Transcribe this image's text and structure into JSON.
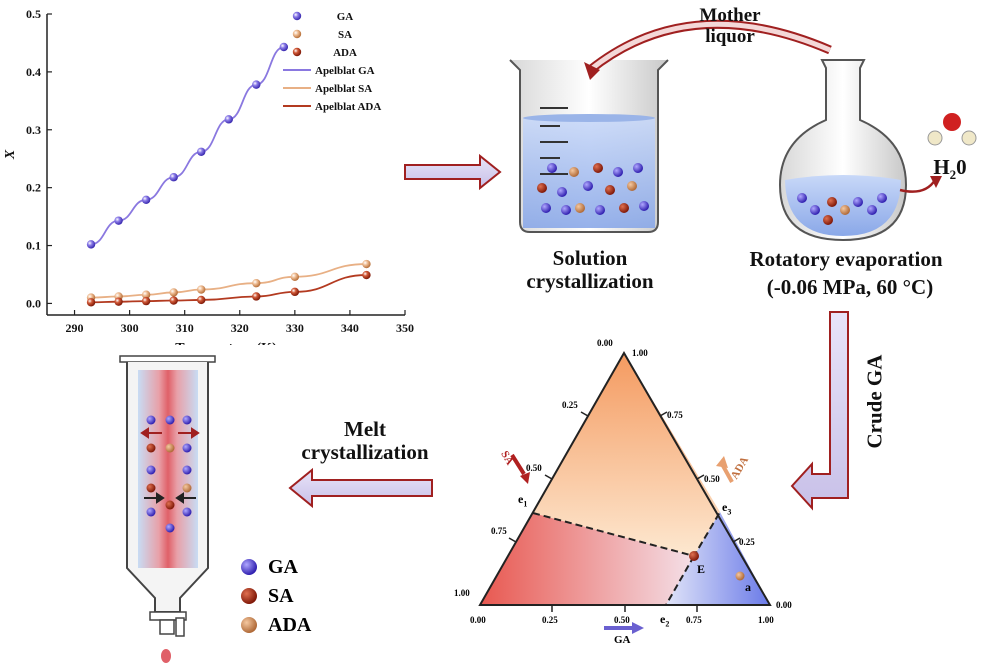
{
  "chart_data": {
    "type": "line",
    "title": "",
    "xlabel": "Temperature (K)",
    "ylabel": "X",
    "xlim": [
      285,
      350
    ],
    "ylim": [
      -0.02,
      0.5
    ],
    "xticks": [
      "290",
      "300",
      "310",
      "320",
      "330",
      "340",
      "350"
    ],
    "yticks": [
      "0.0",
      "0.1",
      "0.2",
      "0.3",
      "0.4",
      "0.5"
    ],
    "legend_position": "top-right",
    "series": [
      {
        "name": "GA",
        "kind": "scatter",
        "color": "#6a5bd6",
        "x": [
          293,
          298,
          303,
          308,
          313,
          318,
          323,
          328
        ],
        "y": [
          0.102,
          0.143,
          0.179,
          0.218,
          0.262,
          0.318,
          0.378,
          0.443
        ]
      },
      {
        "name": "SA",
        "kind": "scatter",
        "color": "#e0a070",
        "x": [
          293,
          298,
          303,
          308,
          313,
          323,
          330,
          343
        ],
        "y": [
          0.01,
          0.012,
          0.015,
          0.019,
          0.024,
          0.035,
          0.046,
          0.068
        ]
      },
      {
        "name": "ADA",
        "kind": "scatter",
        "color": "#b33a20",
        "x": [
          293,
          298,
          303,
          308,
          313,
          323,
          330,
          343
        ],
        "y": [
          0.002,
          0.003,
          0.004,
          0.005,
          0.006,
          0.012,
          0.02,
          0.049
        ]
      },
      {
        "name": "Apelblat  GA",
        "kind": "line",
        "color": "#8a78e0",
        "x": [
          293,
          298,
          303,
          308,
          313,
          318,
          323,
          328
        ],
        "y": [
          0.102,
          0.143,
          0.179,
          0.218,
          0.262,
          0.318,
          0.378,
          0.443
        ]
      },
      {
        "name": "Apelblat  SA",
        "kind": "line",
        "color": "#e8b085",
        "x": [
          293,
          298,
          303,
          308,
          313,
          323,
          330,
          343
        ],
        "y": [
          0.01,
          0.012,
          0.015,
          0.019,
          0.024,
          0.035,
          0.046,
          0.068
        ]
      },
      {
        "name": "Apelblat ADA",
        "kind": "line",
        "color": "#b33a20",
        "x": [
          293,
          298,
          303,
          308,
          313,
          323,
          330,
          343
        ],
        "y": [
          0.002,
          0.003,
          0.004,
          0.005,
          0.006,
          0.012,
          0.02,
          0.049
        ]
      }
    ]
  },
  "process": {
    "mother_liquor": "Mother\nliquor",
    "solution_crystallization": "Solution\ncrystallization",
    "rotatory_evaporation": "Rotatory evaporation",
    "evaporation_conditions": "(-0.06 MPa, 60 °C)",
    "water": "H",
    "water_sub": "2",
    "water_tail": "0",
    "crude_ga": "Crude GA",
    "melt_crystallization": "Melt\ncrystallization"
  },
  "ternary": {
    "apex_labels": {
      "top_left": "0.00",
      "top_right": "1.00"
    },
    "left_ticks": [
      "0.25",
      "0.50",
      "0.75",
      "1.00"
    ],
    "right_ticks": [
      "0.75",
      "0.50",
      "0.25",
      "0.00"
    ],
    "bottom_ticks": [
      "0.00",
      "0.25",
      "0.50",
      "0.75",
      "1.00"
    ],
    "axis_sa": "SA",
    "axis_ada": "ADA",
    "axis_ga": "GA",
    "points": {
      "e1": "e",
      "e1_sub": "1",
      "e2": "e",
      "e2_sub": "2",
      "e3": "e",
      "e3_sub": "3",
      "E": "E",
      "a": "a"
    }
  },
  "legend": {
    "items": [
      {
        "label": "GA",
        "color": "#4a3ad0"
      },
      {
        "label": "SA",
        "color": "#a02010"
      },
      {
        "label": "ADA",
        "color": "#d08050"
      }
    ]
  }
}
